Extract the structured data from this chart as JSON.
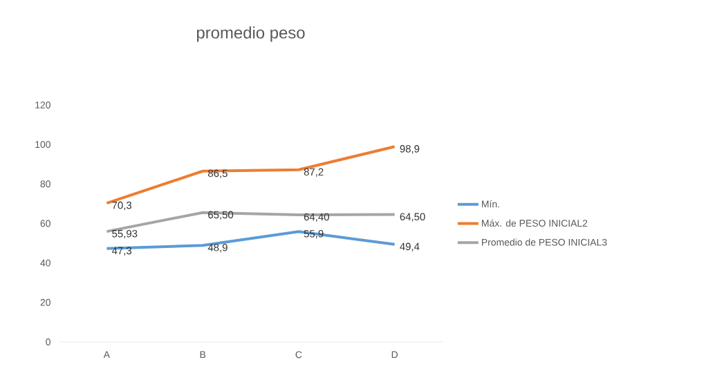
{
  "chart_data": {
    "type": "line",
    "title": "promedio peso",
    "categories": [
      "A",
      "B",
      "C",
      "D"
    ],
    "series": [
      {
        "name": "Mín.",
        "color": "#5b9bd5",
        "values": [
          47.3,
          48.9,
          55.9,
          49.4
        ],
        "value_labels": [
          "47,3",
          "48,9",
          "55,9",
          "49,4"
        ]
      },
      {
        "name": "Máx. de PESO INICIAL2",
        "color": "#ed7d31",
        "values": [
          70.3,
          86.5,
          87.2,
          98.9
        ],
        "value_labels": [
          "70,3",
          "86,5",
          "87,2",
          "98,9"
        ]
      },
      {
        "name": "Promedio de PESO INICIAL3",
        "color": "#a5a5a5",
        "values": [
          55.93,
          65.5,
          64.4,
          64.5
        ],
        "value_labels": [
          "55,93",
          "65,50",
          "64,40",
          "64,50"
        ]
      }
    ],
    "ylim": [
      0,
      120
    ],
    "yticks": [
      0,
      20,
      40,
      60,
      80,
      100,
      120
    ],
    "grid": false,
    "legend": "right",
    "marker": "none",
    "line_style": "solid"
  }
}
